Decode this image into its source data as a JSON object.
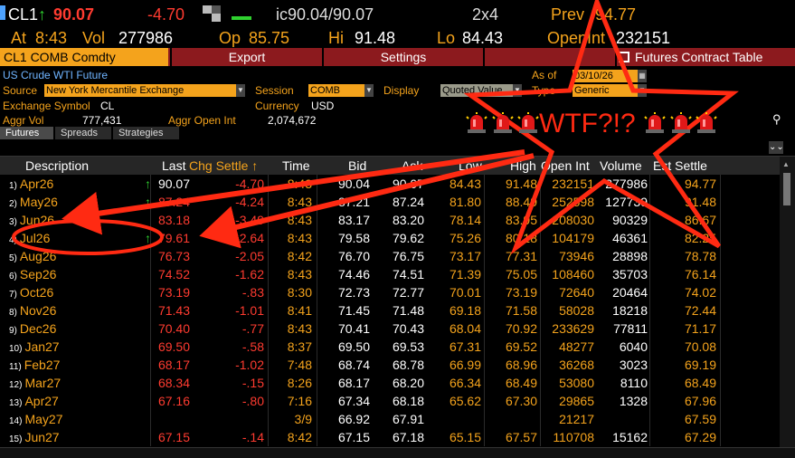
{
  "quote": {
    "ticker": "CL1",
    "last_arrow": "↑",
    "last": "90.07",
    "change": "-4.70",
    "ic_label": "ic90.04/90.07",
    "size": "2x4",
    "prev_label": "Prev",
    "prev_value": "94.77",
    "at_label": "At",
    "at_time": "8:43",
    "vol_label": "Vol",
    "vol_value": "277986",
    "op_label": "Op",
    "op_value": "85.75",
    "hi_label": "Hi",
    "hi_value": "91.48",
    "lo_label": "Lo",
    "lo_value": "84.43",
    "openint_label": "OpenInt",
    "openint_value": "232151"
  },
  "toolbar": {
    "ticker_box": "CL1 COMB Comdty",
    "export": "Export",
    "settings": "Settings",
    "futures_table": "Futures Contract Table"
  },
  "info": {
    "title": "US Crude WTI Future",
    "as_of_label": "As of",
    "as_of_value": "03/10/26",
    "source_label": "Source",
    "source_value": "New York Mercantile Exchange",
    "session_label": "Session",
    "session_value": "COMB",
    "display_label": "Display",
    "display_value": "Quoted Value",
    "type_label": "Type",
    "type_value": "Generic",
    "exchange_symbol_label": "Exchange Symbol",
    "exchange_symbol_value": "CL",
    "currency_label": "Currency",
    "currency_value": "USD",
    "aggr_vol_label": "Aggr Vol",
    "aggr_vol_value": "777,431",
    "aggr_oi_label": "Aggr Open Int",
    "aggr_oi_value": "2,074,672"
  },
  "tabs": [
    "Futures",
    "Spreads",
    "Strategies"
  ],
  "annotation": {
    "text": "WTF?!?",
    "sirens": 6,
    "color": "#ff2a12"
  },
  "columns": [
    "Description",
    "Last",
    "Chg Settle ↑",
    "Time",
    "Bid",
    "Ask",
    "Low",
    "High",
    "Open Int",
    "Volume",
    "Est Settle"
  ],
  "colors": {
    "accent_orange": "#f4a31c",
    "down_red": "#ff3b30",
    "up_green": "#2fd12f",
    "toolbar_red": "#8c1a1e",
    "background": "#000000"
  },
  "rows": [
    {
      "idx": "1)",
      "desc": "Apr26",
      "arrow": "↑",
      "last": "90.07",
      "last_color": "white",
      "chg": "-4.70",
      "time": "8:43",
      "bid": "90.04",
      "ask": "90.07",
      "low": "84.43",
      "high": "91.48",
      "oi": "232151",
      "vol": "277986",
      "est": "94.77"
    },
    {
      "idx": "2)",
      "desc": "May26",
      "arrow": "↑",
      "last": "87.24",
      "last_color": "red",
      "chg": "-4.24",
      "time": "8:43",
      "bid": "87.21",
      "ask": "87.24",
      "low": "81.80",
      "high": "88.49",
      "oi": "252598",
      "vol": "127739",
      "est": "91.48"
    },
    {
      "idx": "3)",
      "desc": "Jun26",
      "arrow": "",
      "last": "83.18",
      "last_color": "red",
      "chg": "-3.49",
      "time": "8:43",
      "bid": "83.17",
      "ask": "83.20",
      "low": "78.14",
      "high": "83.95",
      "oi": "208030",
      "vol": "90329",
      "est": "86.67"
    },
    {
      "idx": "4)",
      "desc": "Jul26",
      "arrow": "↑",
      "last": "79.61",
      "last_color": "red",
      "chg": "-2.64",
      "time": "8:43",
      "bid": "79.58",
      "ask": "79.62",
      "low": "75.26",
      "high": "80.18",
      "oi": "104179",
      "vol": "46361",
      "est": "82.25"
    },
    {
      "idx": "5)",
      "desc": "Aug26",
      "arrow": "",
      "last": "76.73",
      "last_color": "red",
      "chg": "-2.05",
      "time": "8:42",
      "bid": "76.70",
      "ask": "76.75",
      "low": "73.17",
      "high": "77.31",
      "oi": "73946",
      "vol": "28898",
      "est": "78.78"
    },
    {
      "idx": "6)",
      "desc": "Sep26",
      "arrow": "",
      "last": "74.52",
      "last_color": "red",
      "chg": "-1.62",
      "time": "8:43",
      "bid": "74.46",
      "ask": "74.51",
      "low": "71.39",
      "high": "75.05",
      "oi": "108460",
      "vol": "35703",
      "est": "76.14"
    },
    {
      "idx": "7)",
      "desc": "Oct26",
      "arrow": "",
      "last": "73.19",
      "last_color": "red",
      "chg": "-.83",
      "time": "8:30",
      "bid": "72.73",
      "ask": "72.77",
      "low": "70.01",
      "high": "73.19",
      "oi": "72640",
      "vol": "20464",
      "est": "74.02"
    },
    {
      "idx": "8)",
      "desc": "Nov26",
      "arrow": "",
      "last": "71.43",
      "last_color": "red",
      "chg": "-1.01",
      "time": "8:41",
      "bid": "71.45",
      "ask": "71.48",
      "low": "69.18",
      "high": "71.58",
      "oi": "58028",
      "vol": "18218",
      "est": "72.44"
    },
    {
      "idx": "9)",
      "desc": "Dec26",
      "arrow": "",
      "last": "70.40",
      "last_color": "red",
      "chg": "-.77",
      "time": "8:43",
      "bid": "70.41",
      "ask": "70.43",
      "low": "68.04",
      "high": "70.92",
      "oi": "233629",
      "vol": "77811",
      "est": "71.17"
    },
    {
      "idx": "10)",
      "desc": "Jan27",
      "arrow": "",
      "last": "69.50",
      "last_color": "red",
      "chg": "-.58",
      "time": "8:37",
      "bid": "69.50",
      "ask": "69.53",
      "low": "67.31",
      "high": "69.52",
      "oi": "48277",
      "vol": "6040",
      "est": "70.08"
    },
    {
      "idx": "11)",
      "desc": "Feb27",
      "arrow": "",
      "last": "68.17",
      "last_color": "red",
      "chg": "-1.02",
      "time": "7:48",
      "bid": "68.74",
      "ask": "68.78",
      "low": "66.99",
      "high": "68.96",
      "oi": "36268",
      "vol": "3023",
      "est": "69.19"
    },
    {
      "idx": "12)",
      "desc": "Mar27",
      "arrow": "",
      "last": "68.34",
      "last_color": "red",
      "chg": "-.15",
      "time": "8:26",
      "bid": "68.17",
      "ask": "68.20",
      "low": "66.34",
      "high": "68.49",
      "oi": "53080",
      "vol": "8110",
      "est": "68.49"
    },
    {
      "idx": "13)",
      "desc": "Apr27",
      "arrow": "",
      "last": "67.16",
      "last_color": "red",
      "chg": "-.80",
      "time": "7:16",
      "bid": "67.34",
      "ask": "68.18",
      "low": "65.62",
      "high": "67.30",
      "oi": "29865",
      "vol": "1328",
      "est": "67.96"
    },
    {
      "idx": "14)",
      "desc": "May27",
      "arrow": "",
      "last": "",
      "last_color": "red",
      "chg": "",
      "time": "3/9",
      "bid": "66.92",
      "ask": "67.91",
      "low": "",
      "high": "",
      "oi": "21217",
      "vol": "",
      "est": "67.59"
    },
    {
      "idx": "15)",
      "desc": "Jun27",
      "arrow": "",
      "last": "67.15",
      "last_color": "red",
      "chg": "-.14",
      "time": "8:42",
      "bid": "67.15",
      "ask": "67.18",
      "low": "65.15",
      "high": "67.57",
      "oi": "110708",
      "vol": "15162",
      "est": "67.29"
    }
  ]
}
